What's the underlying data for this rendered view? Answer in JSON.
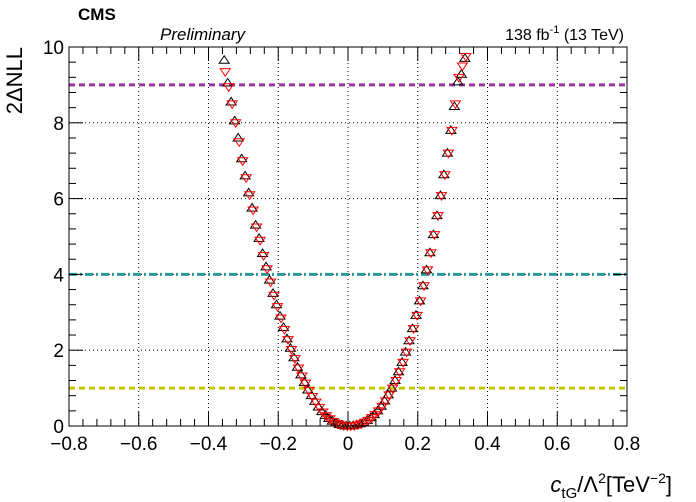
{
  "chart_data": {
    "type": "scatter",
    "header": {
      "experiment": "CMS",
      "status": "Preliminary",
      "lumi_value": "138 fb",
      "lumi_exp": "-1",
      "energy": "(13 TeV)"
    },
    "xlabel": {
      "symbol": "c",
      "subscript": "tG",
      "mid": "/Λ",
      "sup1": "2",
      "units": "[TeV",
      "sup2": "−2",
      "close": "]"
    },
    "ylabel": "2ΔNLL",
    "xlim": [
      -0.8,
      0.8
    ],
    "ylim": [
      0,
      10
    ],
    "grid": true,
    "x_ticks": [
      -0.8,
      -0.6,
      -0.4,
      -0.2,
      0,
      0.2,
      0.4,
      0.6,
      0.8
    ],
    "x_tick_labels": [
      "−0.8",
      "−0.6",
      "−0.4",
      "−0.2",
      "0",
      "0.2",
      "0.4",
      "0.6",
      "0.8"
    ],
    "y_ticks": [
      0,
      2,
      4,
      6,
      8,
      10
    ],
    "y_tick_labels": [
      "0",
      "2",
      "4",
      "6",
      "8",
      "10"
    ],
    "reference_lines": [
      {
        "y": 1,
        "color": "#c8c800",
        "style": "dashed"
      },
      {
        "y": 4,
        "color": "#2e9a9a",
        "style": "dashdot"
      },
      {
        "y": 9,
        "color": "#a033a0",
        "style": "dashed"
      }
    ],
    "series": [
      {
        "marker": "triangle-up-open",
        "color": "#000000",
        "x": [
          -0.355,
          -0.345,
          -0.335,
          -0.325,
          -0.315,
          -0.305,
          -0.295,
          -0.285,
          -0.275,
          -0.265,
          -0.255,
          -0.245,
          -0.235,
          -0.225,
          -0.215,
          -0.205,
          -0.195,
          -0.185,
          -0.175,
          -0.165,
          -0.155,
          -0.145,
          -0.135,
          -0.125,
          -0.115,
          -0.105,
          -0.095,
          -0.085,
          -0.075,
          -0.065,
          -0.055,
          -0.045,
          -0.035,
          -0.025,
          -0.015,
          -0.005,
          0.005,
          0.015,
          0.025,
          0.035,
          0.045,
          0.055,
          0.065,
          0.075,
          0.085,
          0.095,
          0.105,
          0.115,
          0.125,
          0.135,
          0.145,
          0.155,
          0.165,
          0.175,
          0.185,
          0.195,
          0.205,
          0.215,
          0.225,
          0.235,
          0.245,
          0.255,
          0.265,
          0.275,
          0.285,
          0.295,
          0.305,
          0.315,
          0.325,
          0.335
        ],
        "y": [
          9.65,
          9.05,
          8.55,
          8.05,
          7.6,
          7.05,
          6.6,
          6.15,
          5.75,
          5.3,
          4.95,
          4.55,
          4.2,
          3.85,
          3.5,
          3.2,
          2.9,
          2.6,
          2.3,
          2.05,
          1.8,
          1.55,
          1.35,
          1.15,
          0.95,
          0.8,
          0.65,
          0.5,
          0.38,
          0.28,
          0.2,
          0.13,
          0.08,
          0.04,
          0.02,
          0.0,
          0.0,
          0.01,
          0.03,
          0.06,
          0.1,
          0.15,
          0.22,
          0.3,
          0.4,
          0.52,
          0.66,
          0.82,
          1.0,
          1.2,
          1.43,
          1.68,
          1.95,
          2.25,
          2.57,
          2.92,
          3.3,
          3.7,
          4.12,
          4.57,
          5.05,
          5.55,
          6.08,
          6.63,
          7.2,
          7.8,
          8.43,
          9.08,
          9.28,
          9.7
        ]
      },
      {
        "marker": "triangle-down-open",
        "color": "#ff0000",
        "x": [
          -0.352,
          -0.342,
          -0.332,
          -0.322,
          -0.312,
          -0.302,
          -0.292,
          -0.282,
          -0.272,
          -0.262,
          -0.252,
          -0.242,
          -0.232,
          -0.222,
          -0.212,
          -0.202,
          -0.192,
          -0.182,
          -0.172,
          -0.162,
          -0.152,
          -0.142,
          -0.132,
          -0.122,
          -0.112,
          -0.102,
          -0.092,
          -0.082,
          -0.072,
          -0.062,
          -0.052,
          -0.042,
          -0.032,
          -0.022,
          -0.012,
          -0.002,
          0.008,
          0.018,
          0.028,
          0.038,
          0.048,
          0.058,
          0.068,
          0.078,
          0.088,
          0.098,
          0.108,
          0.118,
          0.128,
          0.138,
          0.148,
          0.158,
          0.168,
          0.178,
          0.188,
          0.198,
          0.208,
          0.218,
          0.228,
          0.238,
          0.248,
          0.258,
          0.268,
          0.278,
          0.288,
          0.298,
          0.308,
          0.318,
          0.328,
          0.338
        ],
        "y": [
          9.35,
          8.95,
          8.5,
          8.0,
          7.5,
          7.0,
          6.55,
          6.1,
          5.7,
          5.25,
          4.9,
          4.5,
          4.15,
          3.8,
          3.45,
          3.15,
          2.85,
          2.55,
          2.28,
          2.02,
          1.78,
          1.53,
          1.32,
          1.13,
          0.94,
          0.78,
          0.63,
          0.49,
          0.37,
          0.27,
          0.19,
          0.12,
          0.07,
          0.03,
          0.01,
          0.0,
          0.0,
          0.01,
          0.03,
          0.06,
          0.1,
          0.15,
          0.22,
          0.3,
          0.4,
          0.52,
          0.66,
          0.82,
          1.0,
          1.2,
          1.43,
          1.68,
          1.95,
          2.25,
          2.57,
          2.92,
          3.3,
          3.7,
          4.12,
          4.57,
          5.05,
          5.55,
          6.08,
          6.63,
          7.2,
          7.8,
          8.5,
          9.2,
          9.5,
          9.75
        ]
      }
    ]
  }
}
